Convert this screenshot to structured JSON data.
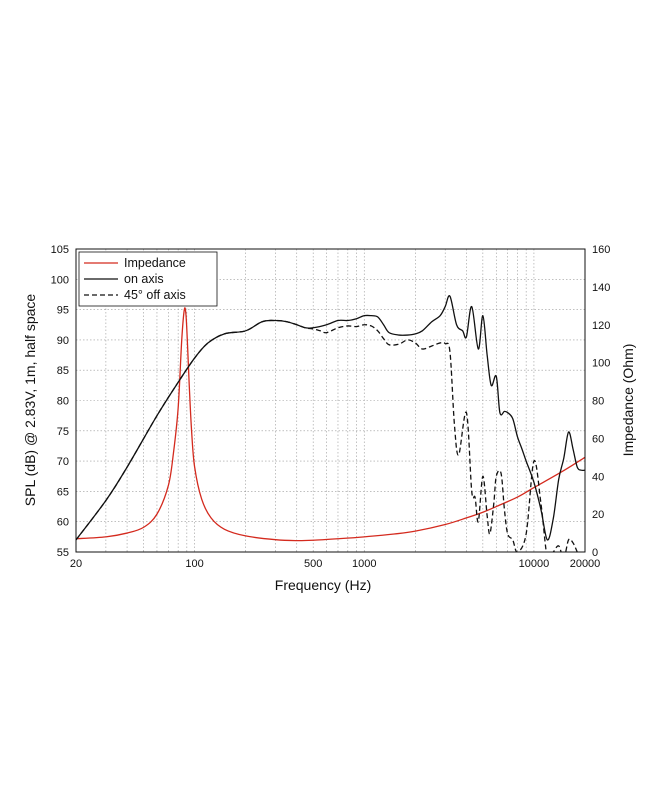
{
  "chart_data": {
    "type": "line",
    "xlabel": "Frequency (Hz)",
    "ylabel": "SPL (dB) @ 2.83V, 1m, half space",
    "y2label": "Impedance (Ohm)",
    "x_scale": "log",
    "xlim": [
      20,
      20000
    ],
    "ylim": [
      55,
      105
    ],
    "y2lim": [
      0,
      160
    ],
    "grid": true,
    "legend_position": "top-left",
    "x_ticks": [
      20,
      100,
      500,
      1000,
      10000,
      20000
    ],
    "x_tick_labels": [
      "20",
      "100",
      "500",
      "1000",
      "10000",
      "20000"
    ],
    "y_ticks": [
      55,
      60,
      65,
      70,
      75,
      80,
      85,
      90,
      95,
      100,
      105
    ],
    "y_tick_labels": [
      "55",
      "60",
      "65",
      "70",
      "75",
      "80",
      "85",
      "90",
      "95",
      "100",
      "105"
    ],
    "y2_ticks": [
      0,
      20,
      40,
      60,
      80,
      100,
      120,
      140,
      160
    ],
    "y2_tick_labels": [
      "0",
      "20",
      "40",
      "60",
      "80",
      "100",
      "120",
      "140",
      "160"
    ],
    "series": [
      {
        "name": "Impedance",
        "axis": "right",
        "color": "#d42a1e",
        "style": "solid",
        "x": [
          20,
          30,
          40,
          50,
          60,
          70,
          75,
          80,
          84,
          87,
          89,
          91,
          93,
          96,
          100,
          110,
          125,
          150,
          200,
          300,
          400,
          500,
          700,
          1000,
          1500,
          2000,
          3000,
          4000,
          5000,
          6000,
          8000,
          10000,
          15000,
          20000
        ],
        "y": [
          7,
          8,
          10,
          13,
          20,
          35,
          52,
          76,
          112,
          128,
          125,
          108,
          88,
          64,
          45,
          28,
          18,
          12,
          8.5,
          6.5,
          6,
          6.2,
          7,
          8,
          9.5,
          11,
          14.5,
          18,
          21,
          24,
          29,
          34,
          43,
          50
        ]
      },
      {
        "name": "on axis",
        "axis": "left",
        "color": "#111111",
        "style": "solid",
        "x": [
          20,
          30,
          40,
          60,
          80,
          100,
          120,
          150,
          200,
          250,
          300,
          350,
          400,
          450,
          500,
          600,
          700,
          800,
          900,
          1000,
          1100,
          1200,
          1300,
          1400,
          1600,
          1800,
          2000,
          2200,
          2500,
          2800,
          3000,
          3200,
          3500,
          3800,
          4000,
          4300,
          4700,
          5000,
          5300,
          5600,
          6000,
          6300,
          6700,
          7000,
          7500,
          8000,
          8500,
          9000,
          10000,
          11000,
          12000,
          13000,
          14000,
          15000,
          16000,
          17000,
          18000,
          19000,
          20000
        ],
        "y": [
          57,
          63.5,
          69,
          77.5,
          83,
          87,
          89.5,
          91,
          91.5,
          93,
          93.2,
          93,
          92.5,
          92,
          92,
          92.5,
          93.2,
          93.2,
          93.5,
          94,
          94,
          93.8,
          92.5,
          91.2,
          90.8,
          90.8,
          91,
          91.5,
          93,
          94,
          95.5,
          97.2,
          92.5,
          91.5,
          90.5,
          95.5,
          88.5,
          94,
          87.5,
          82.5,
          84,
          78,
          78.2,
          78,
          77,
          74,
          72,
          70,
          66.5,
          62,
          57,
          60.5,
          67,
          70.5,
          74.8,
          72,
          69,
          68.5,
          68.5
        ]
      },
      {
        "name": "45° off axis",
        "axis": "left",
        "color": "#111111",
        "style": "dashed",
        "x": [
          20,
          30,
          40,
          60,
          80,
          100,
          120,
          150,
          200,
          250,
          300,
          350,
          400,
          450,
          500,
          550,
          600,
          700,
          800,
          900,
          1000,
          1100,
          1200,
          1300,
          1400,
          1600,
          1800,
          2000,
          2200,
          2500,
          2800,
          3000,
          3200,
          3400,
          3600,
          4000,
          4300,
          4500,
          4700,
          5000,
          5300,
          5500,
          5800,
          6000,
          6400,
          6700,
          7000,
          7500,
          8000,
          9000,
          10000,
          11000,
          12000,
          13000,
          14000,
          15000,
          16000,
          17000,
          18000
        ],
        "y": [
          57,
          63.5,
          69,
          77.5,
          83,
          87,
          89.5,
          91,
          91.5,
          93,
          93.2,
          93,
          92.5,
          92,
          91.8,
          91.5,
          91.2,
          92,
          92.3,
          92.2,
          92.5,
          92.3,
          91.5,
          90.2,
          89.2,
          89.3,
          90,
          89.5,
          88.5,
          89,
          89.5,
          89.4,
          88,
          76,
          71,
          78,
          65,
          64,
          60,
          67.5,
          61,
          58,
          63,
          67.5,
          68,
          62,
          58,
          57,
          55,
          58,
          70,
          63,
          54,
          55,
          56,
          54,
          57,
          56.5,
          55
        ]
      }
    ]
  }
}
